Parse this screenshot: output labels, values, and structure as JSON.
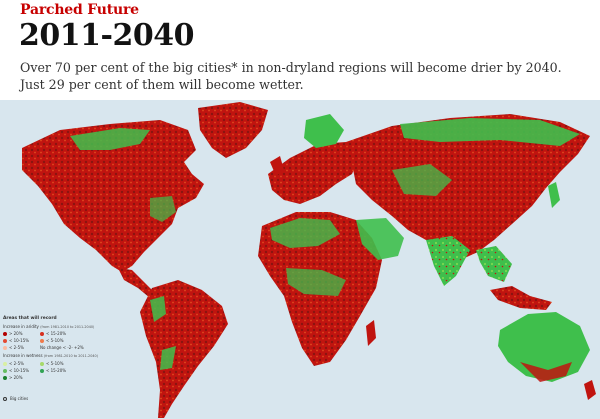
{
  "header": {
    "kicker": "Parched Future",
    "title": "2011-2040",
    "subtitle": "Over 70 per cent of the big cities* in non-dryland regions will become drier by 2040. Just 29 per cent of them will become wetter."
  },
  "legend": {
    "heading": "Areas that will record",
    "aridity": {
      "label": "Increase in aridity",
      "period": "(from 1981-2010 to 2011-2040)",
      "items": [
        {
          "label": "> 20%",
          "color": "#b30000"
        },
        {
          "label": "< 15-20%",
          "color": "#d7301f"
        },
        {
          "label": "< 10-15%",
          "color": "#e34a33"
        },
        {
          "label": "< 5-10%",
          "color": "#f07b4b"
        },
        {
          "label": "< 2-5%",
          "color": "#fcbba1"
        }
      ],
      "no_change": "No change < -2- +2%"
    },
    "wetness": {
      "label": "Increase in wetness",
      "period": "(from 1981-2010 to 2011-2040)",
      "items": [
        {
          "label": "< 2-5%",
          "color": "#d9f0a3"
        },
        {
          "label": "< 5-10%",
          "color": "#a6d96a"
        },
        {
          "label": "< 10-15%",
          "color": "#66bd63"
        },
        {
          "label": "< 15-20%",
          "color": "#31a354"
        },
        {
          "label": "> 20%",
          "color": "#1a7f2e"
        }
      ]
    },
    "cities": "Big cities"
  },
  "colors": {
    "ocean": "#d8e6ee",
    "dry": "#c0140f",
    "wet": "#2db34a",
    "ice": "#e9f1f5"
  }
}
